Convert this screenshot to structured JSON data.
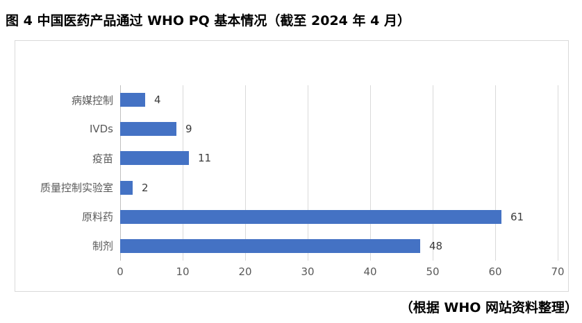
{
  "title": "图 4 中国医药产品通过 WHO PQ 基本情况（截至 2024 年 4 月）",
  "source_note": "（根据 WHO 网站资料整理）",
  "chart_data": {
    "type": "bar",
    "orientation": "horizontal",
    "title": "图 4 中国医药产品通过 WHO PQ 基本情况（截至 2024 年 4 月）",
    "categories": [
      "病媒控制",
      "IVDs",
      "疫苗",
      "质量控制实验室",
      "原料药",
      "制剂"
    ],
    "values": [
      4,
      9,
      11,
      2,
      61,
      48
    ],
    "xlabel": "",
    "ylabel": "",
    "xlim": [
      0,
      70
    ],
    "x_ticks": [
      0,
      10,
      20,
      30,
      40,
      50,
      60,
      70
    ],
    "grid": true,
    "legend_position": "none",
    "data_labels": true
  },
  "colors": {
    "bar": "#4472C4",
    "gridline": "#D9D9D9",
    "axis_line": "#BFBFBF",
    "frame_border": "#D9D9D9",
    "category_label": "#595959",
    "tick_label": "#595959",
    "data_label": "#3B3B3B",
    "title_text": "#000000"
  }
}
